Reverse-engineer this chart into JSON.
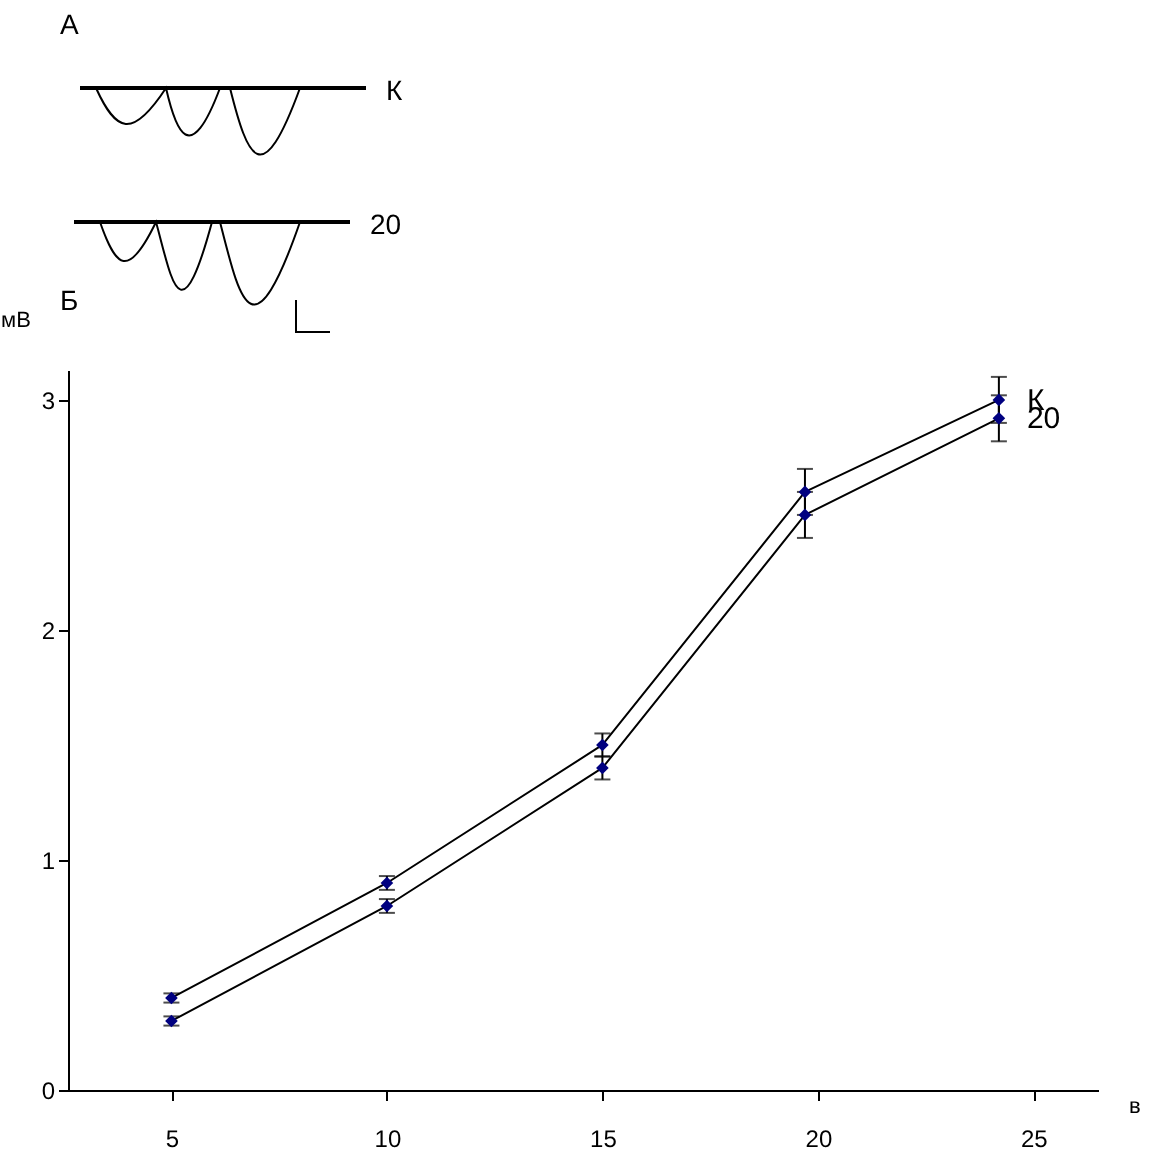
{
  "chart_data": {
    "type": "line",
    "xlabel": "в",
    "ylabel": "мВ",
    "annotations": [
      "А",
      "К",
      "20",
      "Б"
    ],
    "x": [
      5,
      10,
      15,
      19.7,
      24.2
    ],
    "series": [
      {
        "name": "К",
        "color": "#000080",
        "values": [
          0.4,
          0.9,
          1.5,
          2.6,
          3.0
        ],
        "errors": [
          0.02,
          0.03,
          0.05,
          0.1,
          0.1
        ]
      },
      {
        "name": "20",
        "color": "#000080",
        "values": [
          0.3,
          0.8,
          1.4,
          2.5,
          2.92
        ],
        "errors": [
          0.02,
          0.03,
          0.05,
          0.1,
          0.1
        ]
      }
    ],
    "xlim": [
      2.6,
      26.5
    ],
    "ylim": [
      0,
      3.13
    ],
    "xticks": [
      5,
      10,
      15,
      20,
      25
    ],
    "yticks": [
      0,
      1,
      2,
      3
    ],
    "grid": false,
    "legend": false,
    "marker": "diamond",
    "line_style": "solid"
  }
}
